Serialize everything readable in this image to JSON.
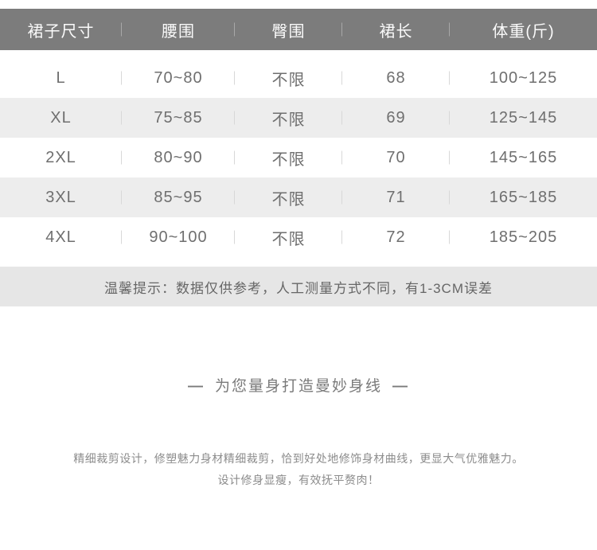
{
  "theme": {
    "header_bg": "#7c7c7c",
    "header_text": "#fafafa",
    "row_alt_bg": "#ededed",
    "note_bg": "#e6e6e6",
    "body_text": "#6f6f6f"
  },
  "size_table": {
    "columns": [
      "裙子尺寸",
      "腰围",
      "臀围",
      "裙长",
      "体重(斤)"
    ],
    "rows": [
      [
        "L",
        "70~80",
        "不限",
        "68",
        "100~125"
      ],
      [
        "XL",
        "75~85",
        "不限",
        "69",
        "125~145"
      ],
      [
        "2XL",
        "80~90",
        "不限",
        "70",
        "145~165"
      ],
      [
        "3XL",
        "85~95",
        "不限",
        "71",
        "165~185"
      ],
      [
        "4XL",
        "90~100",
        "不限",
        "72",
        "185~205"
      ]
    ],
    "note": "温馨提示：数据仅供参考，人工测量方式不同，有1-3CM误差"
  },
  "tagline": {
    "dash_left": "—",
    "text": "为您量身打造曼妙身线",
    "dash_right": "—"
  },
  "description": {
    "line1": "精细裁剪设计，修塑魅力身材精细裁剪，恰到好处地修饰身材曲线，更显大气优雅魅力。",
    "line2": "设计修身显瘦，有效抚平赘肉！"
  }
}
